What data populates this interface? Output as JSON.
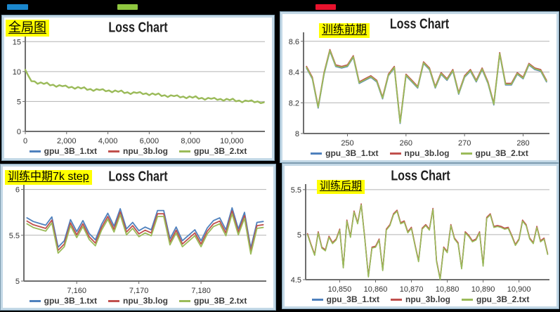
{
  "top_markers": [
    {
      "name": "blue-marker",
      "color": "#1a87cd"
    },
    {
      "name": "green-marker",
      "color": "#8fc63f"
    },
    {
      "name": "red-marker",
      "color": "#e8122d"
    }
  ],
  "legend": [
    {
      "label": "gpu_3B_1.txt",
      "color": "#4F81BD"
    },
    {
      "label": "npu_3b.log",
      "color": "#C0504D"
    },
    {
      "label": "gpu_3B_2.txt",
      "color": "#9BBB59"
    }
  ],
  "chart_data": [
    {
      "type": "line",
      "title": "Loss Chart",
      "annotation": "全局图",
      "x_range": [
        0,
        11600
      ],
      "y_range": [
        0,
        15.5
      ],
      "x_ticks": [
        0,
        2000,
        4000,
        6000,
        8000,
        10000
      ],
      "x_tick_labels": [
        "0",
        "2,000",
        "4,000",
        "6,000",
        "8,000",
        "10,000"
      ],
      "y_ticks": [
        0,
        5,
        10,
        15
      ],
      "y_tick_labels": [
        "0",
        "5",
        "10",
        "15"
      ],
      "x_start": 0,
      "x_step": 150,
      "y": [
        10.3,
        9.28,
        8.38,
        8.36,
        7.95,
        8.18,
        7.94,
        8.15,
        7.69,
        7.8,
        7.46,
        7.73,
        7.55,
        7.66,
        7.3,
        7.44,
        7.13,
        7.42,
        7.18,
        7.38,
        6.94,
        7.08,
        6.77,
        7.07,
        6.92,
        7.06,
        6.71,
        6.85,
        6.54,
        6.84,
        6.61,
        6.83,
        6.4,
        6.54,
        6.24,
        6.55,
        6.42,
        6.57,
        6.22,
        6.36,
        6.05,
        6.35,
        6.12,
        6.34,
        5.91,
        6.05,
        5.74,
        6.04,
        5.89,
        6.03,
        5.68,
        5.83,
        5.54,
        5.85,
        5.64,
        5.87,
        5.46,
        5.6,
        5.3,
        5.6,
        5.45,
        5.6,
        5.27,
        5.42,
        5.13,
        5.44,
        5.23,
        5.46,
        5.03,
        5.17,
        4.86,
        5.17,
        5.04,
        5.19,
        4.86,
        5.01,
        4.72,
        4.85
      ],
      "series": [
        {
          "name": "gpu_3B_1.txt",
          "color": "#4F81BD",
          "offset": 0.03,
          "width": 1.5
        },
        {
          "name": "npu_3b.log",
          "color": "#C0504D",
          "offset": 0.015,
          "width": 1.5
        },
        {
          "name": "gpu_3B_2.txt",
          "color": "#9BBB59",
          "offset": 0,
          "width": 2.4
        }
      ]
    },
    {
      "type": "line",
      "title": "Loss Chart",
      "annotation": "训练前期",
      "x_range": [
        242.5,
        284.5
      ],
      "y_range": [
        8,
        8.64
      ],
      "x_ticks": [
        250,
        260,
        270,
        280
      ],
      "x_tick_labels": [
        "250",
        "260",
        "270",
        "280"
      ],
      "y_ticks": [
        8,
        8.2,
        8.4,
        8.6
      ],
      "y_tick_labels": [
        "8",
        "8.2",
        "8.4",
        "8.6"
      ],
      "x_start": 243,
      "x_step": 1,
      "y": [
        8.43,
        8.36,
        8.17,
        8.39,
        8.54,
        8.44,
        8.43,
        8.44,
        8.5,
        8.33,
        8.35,
        8.37,
        8.34,
        8.23,
        8.38,
        8.43,
        8.07,
        8.38,
        8.34,
        8.3,
        8.46,
        8.42,
        8.3,
        8.39,
        8.35,
        8.41,
        8.26,
        8.37,
        8.41,
        8.34,
        8.42,
        8.33,
        8.19,
        8.52,
        8.32,
        8.32,
        8.39,
        8.36,
        8.45,
        8.42,
        8.41,
        8.34
      ],
      "series": [
        {
          "name": "gpu_3B_1.txt",
          "color": "#4F81BD",
          "offset": -0.004,
          "width": 1.8
        },
        {
          "name": "npu_3b.log",
          "color": "#C0504D",
          "offset": 0.006,
          "width": 1.8
        },
        {
          "name": "gpu_3B_2.txt",
          "color": "#9BBB59",
          "offset": 0,
          "width": 1.8
        }
      ]
    },
    {
      "type": "line",
      "title": "Loss Chart",
      "annotation": "训练中期7k step",
      "x_range": [
        7151.5,
        7190.5
      ],
      "y_range": [
        5,
        6.02
      ],
      "x_ticks": [
        7160,
        7170,
        7180
      ],
      "x_tick_labels": [
        "7,160",
        "7,170",
        "7,180"
      ],
      "y_ticks": [
        5,
        5.5,
        6
      ],
      "y_tick_labels": [
        "5",
        "5.5",
        "6"
      ],
      "x_start": 7152,
      "x_step": 1,
      "y": [
        5.69,
        5.65,
        5.63,
        5.61,
        5.7,
        5.37,
        5.44,
        5.67,
        5.54,
        5.66,
        5.52,
        5.45,
        5.62,
        5.74,
        5.6,
        5.79,
        5.57,
        5.64,
        5.55,
        5.59,
        5.56,
        5.77,
        5.77,
        5.46,
        5.59,
        5.44,
        5.5,
        5.56,
        5.44,
        5.58,
        5.66,
        5.69,
        5.56,
        5.8,
        5.57,
        5.75,
        5.36,
        5.64,
        5.65
      ],
      "series": [
        {
          "name": "gpu_3B_1.txt",
          "color": "#4F81BD",
          "offset": 0,
          "width": 1.8
        },
        {
          "name": "npu_3b.log",
          "color": "#C0504D",
          "offset": -0.035,
          "width": 1.8
        },
        {
          "name": "gpu_3B_2.txt",
          "color": "#9BBB59",
          "offset": -0.065,
          "width": 1.8
        }
      ]
    },
    {
      "type": "line",
      "title": "Loss Chart",
      "annotation": "训练后期",
      "x_range": [
        10840.5,
        10908.5
      ],
      "y_range": [
        4.5,
        5.53
      ],
      "x_ticks": [
        10850,
        10860,
        10870,
        10880,
        10890,
        10900
      ],
      "x_tick_labels": [
        "10,850",
        "10,860",
        "10,870",
        "10,880",
        "10,890",
        "10,900"
      ],
      "y_ticks": [
        4.5,
        5,
        5.5
      ],
      "y_tick_labels": [
        "4.5",
        "5",
        "5.5"
      ],
      "x_start": 10841,
      "x_step": 1,
      "y": [
        5.0,
        4.88,
        4.77,
        5.02,
        4.85,
        4.82,
        4.97,
        4.9,
        4.94,
        5.05,
        4.63,
        5.15,
        4.97,
        5.25,
        5.12,
        5.33,
        4.95,
        4.53,
        4.85,
        4.86,
        4.94,
        4.6,
        5.05,
        5.1,
        5.22,
        5.26,
        5.12,
        5.14,
        5.02,
        5.07,
        4.88,
        4.7,
        5.06,
        5.1,
        5.05,
        5.28,
        4.7,
        4.5,
        4.85,
        4.8,
        5.1,
        4.95,
        4.9,
        4.62,
        5.02,
        4.98,
        4.92,
        4.94,
        5.02,
        4.65,
        5.18,
        5.22,
        5.08,
        5.09,
        5.08,
        5.06,
        5.07,
        4.98,
        4.88,
        4.94,
        5.15,
        5.1,
        4.95,
        4.9,
        5.08,
        4.92,
        4.95,
        4.78
      ],
      "series": [
        {
          "name": "gpu_3B_1.txt",
          "color": "#4F81BD",
          "offset": 0.004,
          "width": 1.6
        },
        {
          "name": "npu_3b.log",
          "color": "#C0504D",
          "offset": 0.012,
          "width": 1.6
        },
        {
          "name": "gpu_3B_2.txt",
          "color": "#9BBB59",
          "offset": 0,
          "width": 1.6
        }
      ]
    }
  ]
}
